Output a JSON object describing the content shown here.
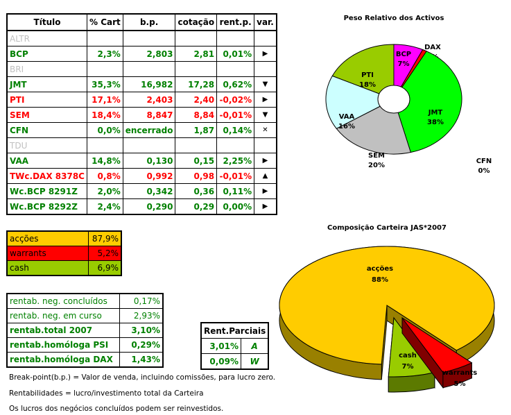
{
  "table": {
    "headers": [
      "Título",
      "% Cart",
      "b.p.",
      "cotação",
      "rent.p.",
      "var."
    ],
    "rows": [
      {
        "t": "ALTR",
        "c": "x",
        "v": [
          "",
          "",
          "",
          "",
          ""
        ],
        "var": ""
      },
      {
        "t": "BCP",
        "c": "g",
        "v": [
          "2,3%",
          "2,803",
          "2,81",
          "0,01%"
        ],
        "var": "▶"
      },
      {
        "t": "BRI",
        "c": "x",
        "v": [
          "",
          "",
          "",
          "",
          ""
        ],
        "var": ""
      },
      {
        "t": "JMT",
        "c": "g",
        "v": [
          "35,3%",
          "16,982",
          "17,28",
          "0,62%"
        ],
        "var": "▼"
      },
      {
        "t": "PTI",
        "c": "r",
        "v": [
          "17,1%",
          "2,403",
          "2,40",
          "-0,02%"
        ],
        "var": "▶"
      },
      {
        "t": "SEM",
        "c": "r",
        "v": [
          "18,4%",
          "8,847",
          "8,84",
          "-0,01%"
        ],
        "var": "▼"
      },
      {
        "t": "CFN",
        "c": "g",
        "v": [
          "0,0%",
          "encerrado",
          "1,87",
          "0,14%"
        ],
        "var": "✕"
      },
      {
        "t": "TDU",
        "c": "x",
        "v": [
          "",
          "",
          "",
          "",
          ""
        ],
        "var": ""
      },
      {
        "t": "VAA",
        "c": "g",
        "v": [
          "14,8%",
          "0,130",
          "0,15",
          "2,25%"
        ],
        "var": "▶"
      },
      {
        "t": "TWc.DAX 8378C",
        "c": "r",
        "v": [
          "0,8%",
          "0,992",
          "0,98",
          "-0,01%"
        ],
        "var": "▲"
      },
      {
        "t": "Wc.BCP 8291Z",
        "c": "g",
        "v": [
          "2,0%",
          "0,342",
          "0,36",
          "0,11%"
        ],
        "var": "▶"
      },
      {
        "t": "Wc.BCP 8292Z",
        "c": "g",
        "v": [
          "2,4%",
          "0,290",
          "0,29",
          "0,00%"
        ],
        "var": "▶"
      }
    ]
  },
  "allocation": [
    {
      "label": "acções",
      "value": "87,9%",
      "color": "#FFCC00"
    },
    {
      "label": "warrants",
      "value": "5,2%",
      "color": "#FF0000"
    },
    {
      "label": "cash",
      "value": "6,9%",
      "color": "#99CC00"
    }
  ],
  "returns": [
    {
      "label": "rentab. neg. concluídos",
      "value": "0,17%",
      "bold": false
    },
    {
      "label": "rentab. neg. em curso",
      "value": "2,93%",
      "bold": false
    },
    {
      "label": "rentab.total 2007",
      "value": "3,10%",
      "bold": true
    },
    {
      "label": "rentab.homóloga PSI",
      "value": "0,29%",
      "bold": true
    },
    {
      "label": "rentab.homóloga DAX",
      "value": "1,43%",
      "bold": true
    }
  ],
  "partial": {
    "title": "Rent.Parciais",
    "rows": [
      {
        "value": "3,01%",
        "tag": "A"
      },
      {
        "value": "0,09%",
        "tag": "W"
      }
    ]
  },
  "notes": [
    "Break-point(b.p.) = Valor de venda, incluindo comissões, para lucro zero.",
    "Rentabilidades = lucro/investimento total da Carteira",
    "Os lucros dos negócios concluídos podem ser reinvestidos."
  ],
  "chart_data": [
    {
      "type": "pie",
      "title": "Peso Relativo dos Activos",
      "categories": [
        "BCP",
        "DAX",
        "JMT",
        "CFN",
        "SEM",
        "VAA",
        "PTI"
      ],
      "values": [
        7,
        1,
        38,
        0,
        20,
        16,
        18
      ],
      "labels": [
        "7%",
        "1%",
        "38%",
        "0%",
        "20%",
        "16%",
        "18%"
      ],
      "colors": [
        "#FF00FF",
        "#FF0000",
        "#00FF00",
        "#000000",
        "#C0C0C0",
        "#CCFFFF",
        "#99CC00"
      ]
    },
    {
      "type": "pie",
      "title": "Composição Carteira JAS*2007",
      "categories": [
        "acções",
        "warrants",
        "cash"
      ],
      "values": [
        88,
        5,
        7
      ],
      "labels": [
        "88%",
        "5%",
        "7%"
      ],
      "colors": [
        "#FFCC00",
        "#FF0000",
        "#99CC00"
      ],
      "dark": [
        "#998000",
        "#800000",
        "#5C7A00"
      ]
    }
  ]
}
